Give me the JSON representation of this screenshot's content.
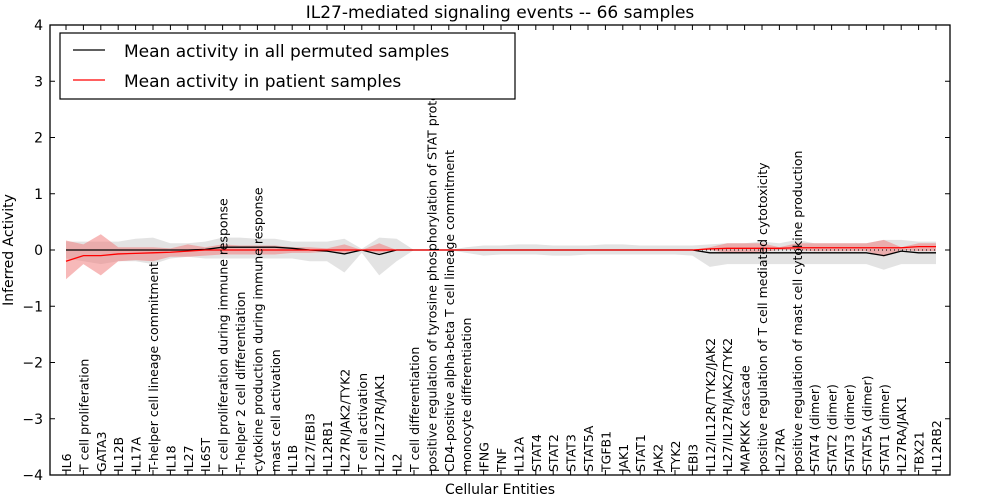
{
  "chart_data": {
    "type": "line",
    "title": "IL27-mediated signaling events -- 66 samples",
    "xlabel": "Cellular Entities",
    "ylabel": "Inferred Activity",
    "ylim": [
      -4,
      4
    ],
    "yticks": [
      -4,
      -3,
      -2,
      -1,
      0,
      1,
      2,
      3,
      4
    ],
    "ytick_labels": [
      "−4",
      "−3",
      "−2",
      "−1",
      "0",
      "1",
      "2",
      "3",
      "4"
    ],
    "grid": false,
    "legend_position": "top-left",
    "categories": [
      "IL6",
      "T cell proliferation",
      "GATA3",
      "IL12B",
      "IL17A",
      "T-helper cell lineage commitment",
      "IL18",
      "IL27",
      "IL6ST",
      "T cell proliferation during immune response",
      "T-helper 2 cell differentiation",
      "cytokine production during immune response",
      "mast cell activation",
      "IL1B",
      "IL27/EBI3",
      "IL12RB1",
      "IL27R/JAK2/TYK2",
      "T cell activation",
      "IL27/IL27R/JAK1",
      "IL2",
      "T cell differentiation",
      "positive regulation of tyrosine phosphorylation of STAT protein",
      "CD4-positive alpha-beta T cell lineage commitment",
      "monocyte differentiation",
      "IFNG",
      "TNF",
      "IL12A",
      "STAT4",
      "STAT2",
      "STAT3",
      "STAT5A",
      "TGFB1",
      "JAK1",
      "STAT1",
      "JAK2",
      "TYK2",
      "EBI3",
      "IL12/IL12R/TYK2/JAK2",
      "IL27/IL27R/JAK2/TYK2",
      "MAPKKK cascade",
      "positive regulation of T cell mediated cytotoxicity",
      "IL27RA",
      "positive regulation of mast cell cytokine production",
      "STAT4 (dimer)",
      "STAT2 (dimer)",
      "STAT3 (dimer)",
      "STAT5A (dimer)",
      "STAT1 (dimer)",
      "IL27RA/JAK1",
      "TBX21",
      "IL12RB2"
    ],
    "series": [
      {
        "name": "Mean activity in all permuted samples",
        "color": "#000000",
        "values": [
          0,
          0,
          0,
          0,
          0,
          0,
          0,
          0,
          0.01,
          0.05,
          0.05,
          0.05,
          0.05,
          0.03,
          0,
          -0.02,
          -0.07,
          0,
          -0.08,
          0,
          0,
          0,
          0,
          0,
          0,
          0,
          0,
          0,
          0,
          0,
          0,
          0,
          0,
          0,
          0,
          0,
          0,
          -0.05,
          -0.05,
          -0.05,
          -0.05,
          -0.05,
          -0.05,
          -0.05,
          -0.05,
          -0.05,
          -0.05,
          -0.1,
          -0.02,
          -0.05,
          -0.05
        ],
        "band_lower": [
          -0.15,
          -0.2,
          -0.25,
          -0.2,
          -0.2,
          -0.25,
          -0.15,
          -0.12,
          -0.15,
          -0.15,
          -0.15,
          -0.15,
          -0.15,
          -0.15,
          -0.2,
          -0.2,
          -0.4,
          -0.05,
          -0.45,
          -0.2,
          0,
          0,
          0,
          -0.05,
          -0.1,
          -0.08,
          -0.08,
          -0.08,
          -0.1,
          -0.1,
          -0.08,
          -0.08,
          -0.08,
          -0.08,
          -0.08,
          -0.08,
          -0.1,
          -0.3,
          -0.25,
          -0.25,
          -0.25,
          -0.25,
          -0.25,
          -0.25,
          -0.25,
          -0.25,
          -0.25,
          -0.35,
          -0.25,
          -0.25,
          -0.25
        ],
        "band_upper": [
          0.15,
          0.15,
          0.15,
          0.15,
          0.2,
          0.22,
          0.12,
          0.12,
          0.15,
          0.22,
          0.22,
          0.2,
          0.2,
          0.15,
          0.15,
          0.15,
          0.2,
          0.02,
          0.22,
          0.2,
          0,
          0,
          0,
          0.05,
          0.08,
          0.08,
          0.1,
          0.1,
          0.08,
          0.08,
          0.08,
          0.1,
          0.1,
          0.08,
          0.08,
          0.08,
          0.08,
          0.1,
          0.12,
          0.12,
          0.15,
          0.12,
          0.18,
          0.12,
          0.12,
          0.12,
          0.12,
          0.18,
          0.18,
          0.15,
          0.15
        ]
      },
      {
        "name": "Mean activity in patient samples",
        "color": "#ff0000",
        "values": [
          -0.2,
          -0.1,
          -0.1,
          -0.07,
          -0.06,
          -0.05,
          -0.04,
          -0.02,
          0,
          0,
          0,
          0,
          0,
          0,
          0,
          0,
          0,
          0,
          0,
          0,
          0,
          0,
          0,
          0,
          0,
          0,
          0,
          0,
          0,
          0,
          0,
          0,
          0,
          0,
          0,
          0,
          0,
          0.02,
          0.03,
          0.03,
          0.03,
          0.03,
          0.04,
          0.04,
          0.04,
          0.04,
          0.04,
          0.04,
          0.04,
          0.06,
          0.06
        ],
        "band_lower": [
          -0.52,
          -0.25,
          -0.45,
          -0.2,
          -0.18,
          -0.2,
          -0.12,
          -0.12,
          -0.1,
          -0.08,
          -0.08,
          -0.08,
          -0.08,
          -0.05,
          -0.05,
          -0.03,
          -0.05,
          0,
          -0.05,
          0,
          0,
          0,
          0,
          0,
          0,
          0,
          0,
          0,
          0,
          0,
          0,
          0,
          0,
          0,
          0,
          0,
          0,
          0,
          -0.05,
          -0.05,
          -0.03,
          0,
          0,
          -0.02,
          -0.02,
          -0.02,
          -0.02,
          -0.12,
          0,
          -0.02,
          -0.02
        ],
        "band_upper": [
          0.17,
          0.1,
          0.28,
          0.05,
          0.05,
          0.05,
          0.03,
          0.1,
          0.05,
          0.1,
          0.08,
          0.08,
          0.08,
          0.05,
          0.05,
          0.03,
          0.1,
          0,
          0.12,
          0,
          0,
          0,
          0,
          0,
          0,
          0,
          0,
          0,
          0,
          0,
          0,
          0,
          0,
          0,
          0,
          0,
          0,
          0.05,
          0.12,
          0.12,
          0.12,
          0.05,
          0.12,
          0.12,
          0.12,
          0.12,
          0.12,
          0.18,
          0.05,
          0.12,
          0.12
        ]
      }
    ],
    "band_colors": {
      "permuted": "#d9d9d9",
      "patient": "#f08080"
    },
    "legend": [
      {
        "label": "Mean activity in all permuted samples",
        "color": "#000000"
      },
      {
        "label": "Mean activity in patient samples",
        "color": "#ff0000"
      }
    ]
  }
}
